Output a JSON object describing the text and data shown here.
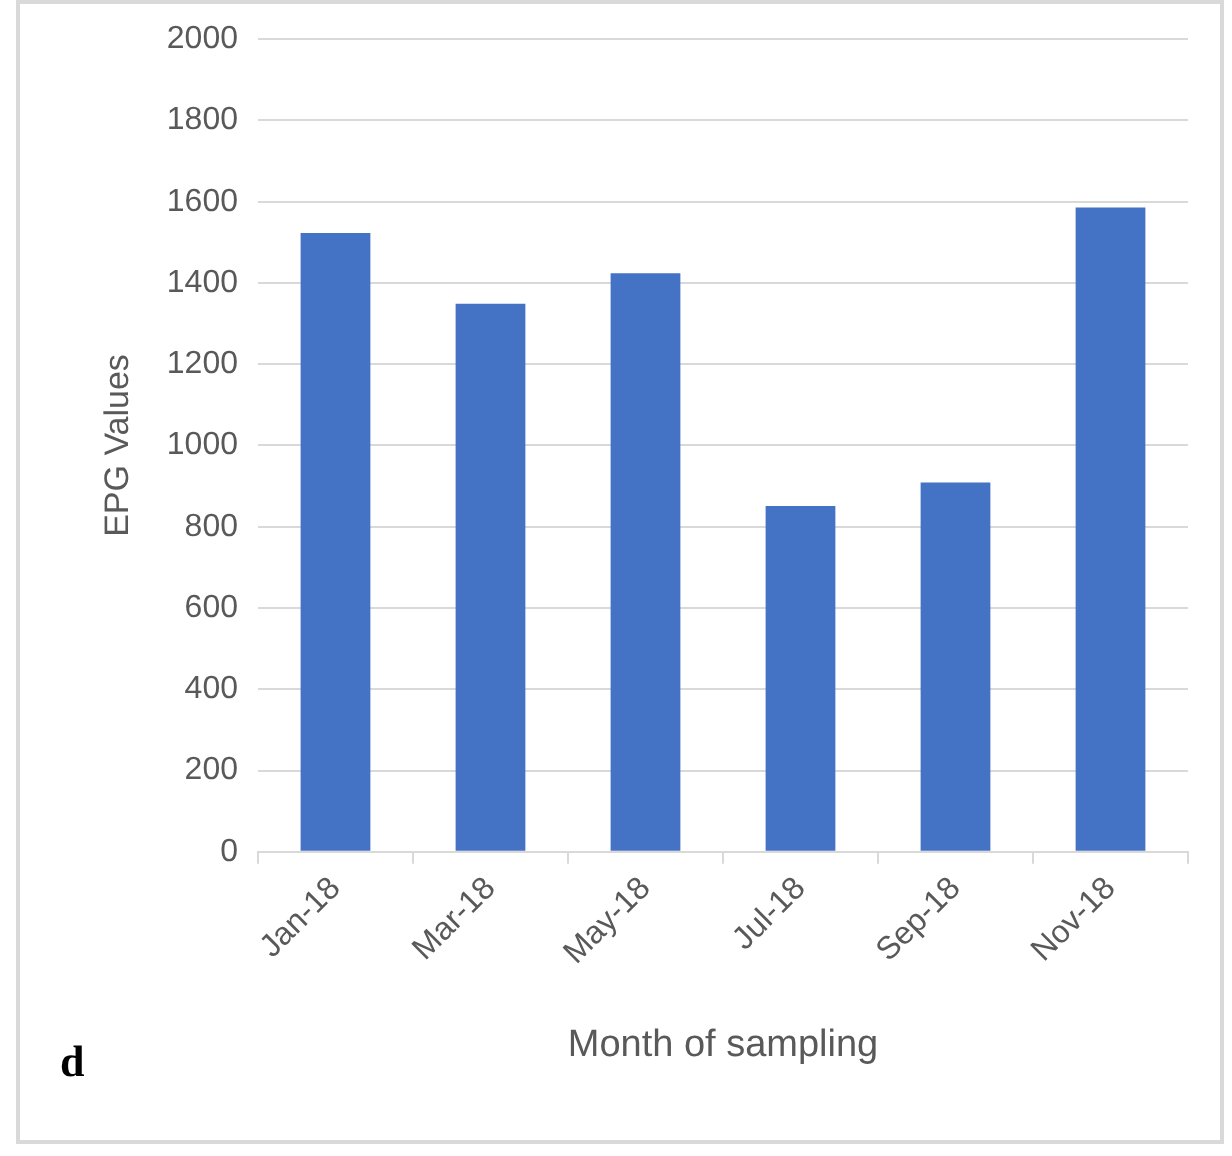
{
  "chart_data": {
    "type": "bar",
    "xlabel": "Month of sampling",
    "ylabel": "EPG Values",
    "categories": [
      "Jan-18",
      "Mar-18",
      "May-18",
      "Jul-18",
      "Sep-18",
      "Nov-18"
    ],
    "values": [
      1523,
      1349,
      1424,
      851,
      909,
      1586
    ],
    "color": "#4472c4",
    "ylim": [
      0,
      2000
    ],
    "yticks": [
      0,
      200,
      400,
      600,
      800,
      1000,
      1200,
      1400,
      1600,
      1800,
      2000
    ],
    "grid": "y",
    "legend": false,
    "annotations": [
      "d"
    ]
  }
}
